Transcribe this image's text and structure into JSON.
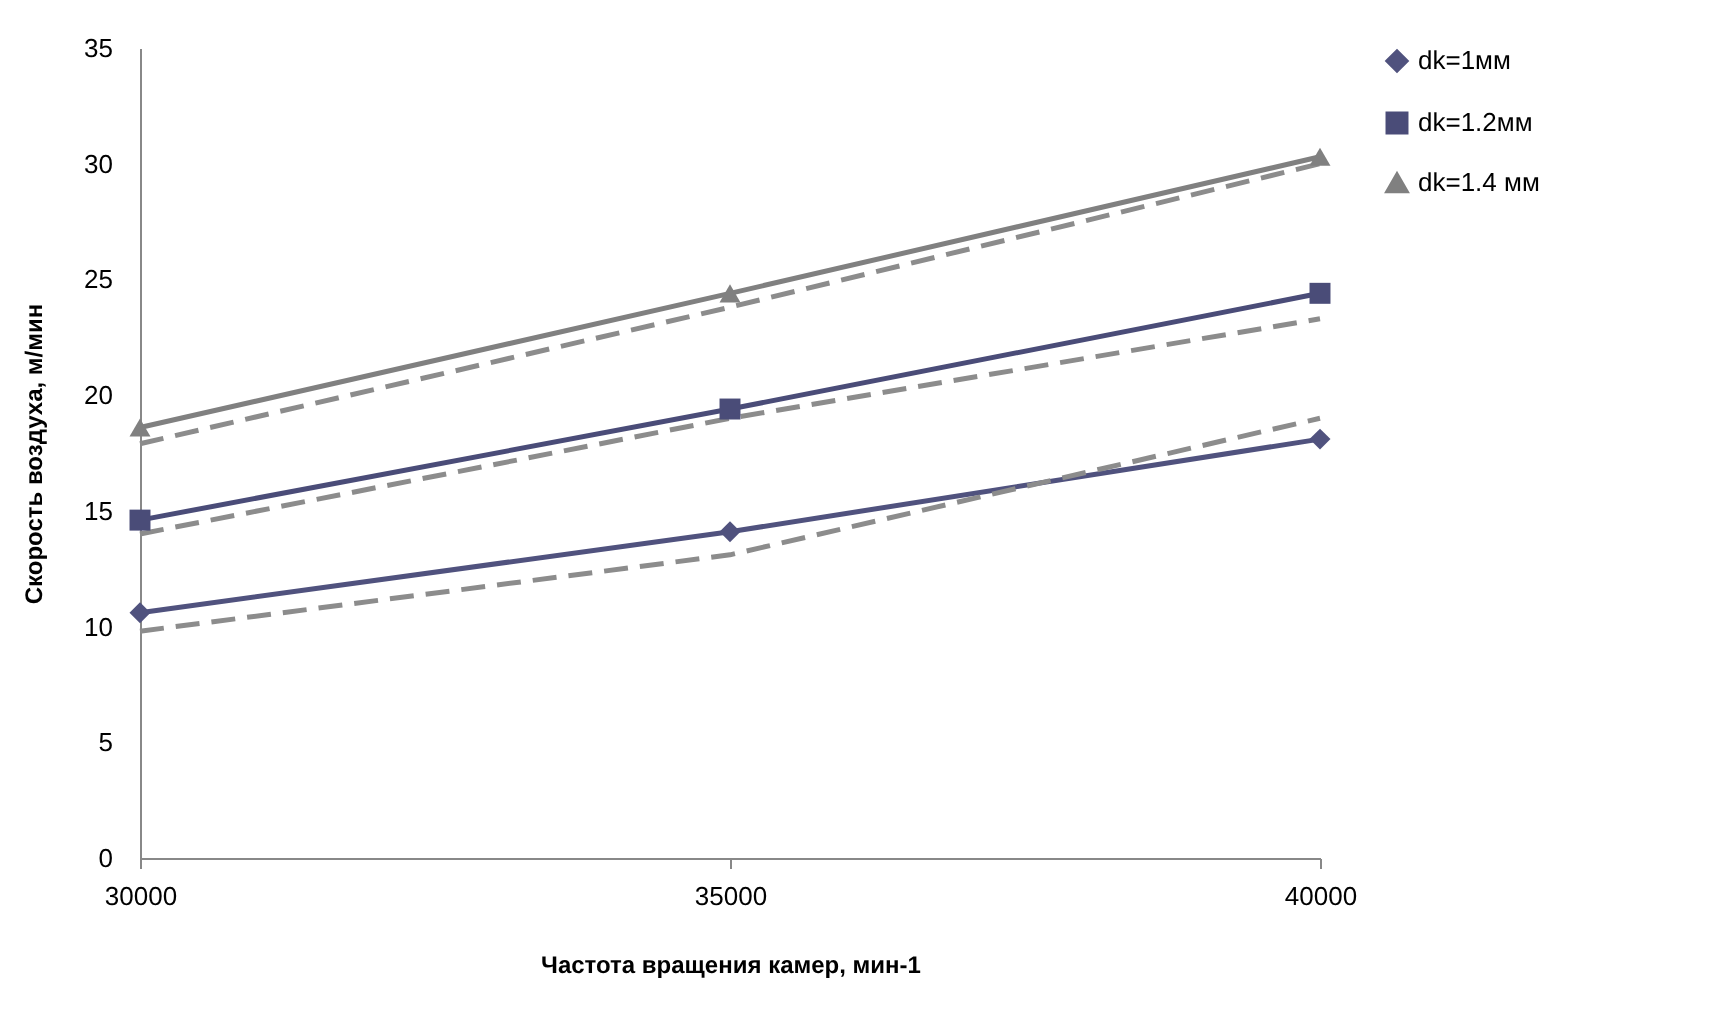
{
  "chart_data": {
    "type": "line",
    "xlabel": "Частота вращения камер, мин-1",
    "ylabel": "Скорость воздуха, м/мин",
    "x": [
      30000,
      35000,
      40000
    ],
    "xlim": [
      30000,
      40000
    ],
    "xticks": [
      30000,
      35000,
      40000
    ],
    "ylim": [
      0,
      35
    ],
    "yticks": [
      0,
      5,
      10,
      15,
      20,
      25,
      30,
      35
    ],
    "grid": false,
    "legend": "right",
    "series": [
      {
        "name": "dk=1мм",
        "color": "#50527e",
        "marker": "diamond",
        "line_style": "solid",
        "values": [
          10.6,
          14.1,
          18.1
        ]
      },
      {
        "name": "dk=1.2мм",
        "color": "#4a4c78",
        "marker": "square",
        "line_style": "solid",
        "values": [
          14.6,
          19.4,
          24.4
        ]
      },
      {
        "name": "dk=1.4 мм",
        "color": "#808080",
        "marker": "triangle",
        "line_style": "solid",
        "values": [
          18.6,
          24.4,
          30.3
        ]
      },
      {
        "color": "#8c8c8c",
        "marker": "none",
        "line_style": "dashed",
        "values": [
          9.8,
          13.1,
          19.0
        ]
      },
      {
        "color": "#8c8c8c",
        "marker": "none",
        "line_style": "dashed",
        "values": [
          14.0,
          19.0,
          23.3
        ]
      },
      {
        "color": "#8c8c8c",
        "marker": "none",
        "line_style": "dashed",
        "values": [
          17.9,
          23.8,
          30.0
        ]
      }
    ]
  }
}
